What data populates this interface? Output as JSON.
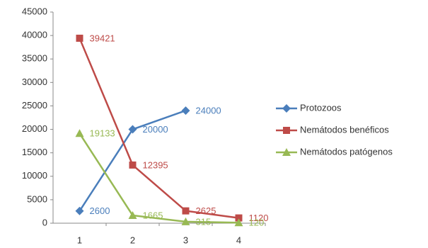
{
  "chart_data": {
    "type": "line",
    "categories": [
      "1",
      "2",
      "3",
      "4"
    ],
    "series": [
      {
        "name": "Protozoos",
        "color": "#4a7ebb",
        "marker": "diamond",
        "values": [
          2600,
          20000,
          24000,
          null
        ]
      },
      {
        "name": "Nemátodos benéficos",
        "color": "#be4b48",
        "marker": "square",
        "values": [
          39421,
          12395,
          2625,
          1120
        ]
      },
      {
        "name": "Nemátodos patógenos",
        "color": "#98b954",
        "marker": "triangle",
        "values": [
          19133,
          1665,
          315,
          120
        ]
      }
    ],
    "ylim": [
      0,
      45000
    ],
    "yticks": [
      0,
      5000,
      10000,
      15000,
      20000,
      25000,
      30000,
      35000,
      40000,
      45000
    ],
    "grid": false,
    "legend": "right",
    "data_labels": true
  }
}
